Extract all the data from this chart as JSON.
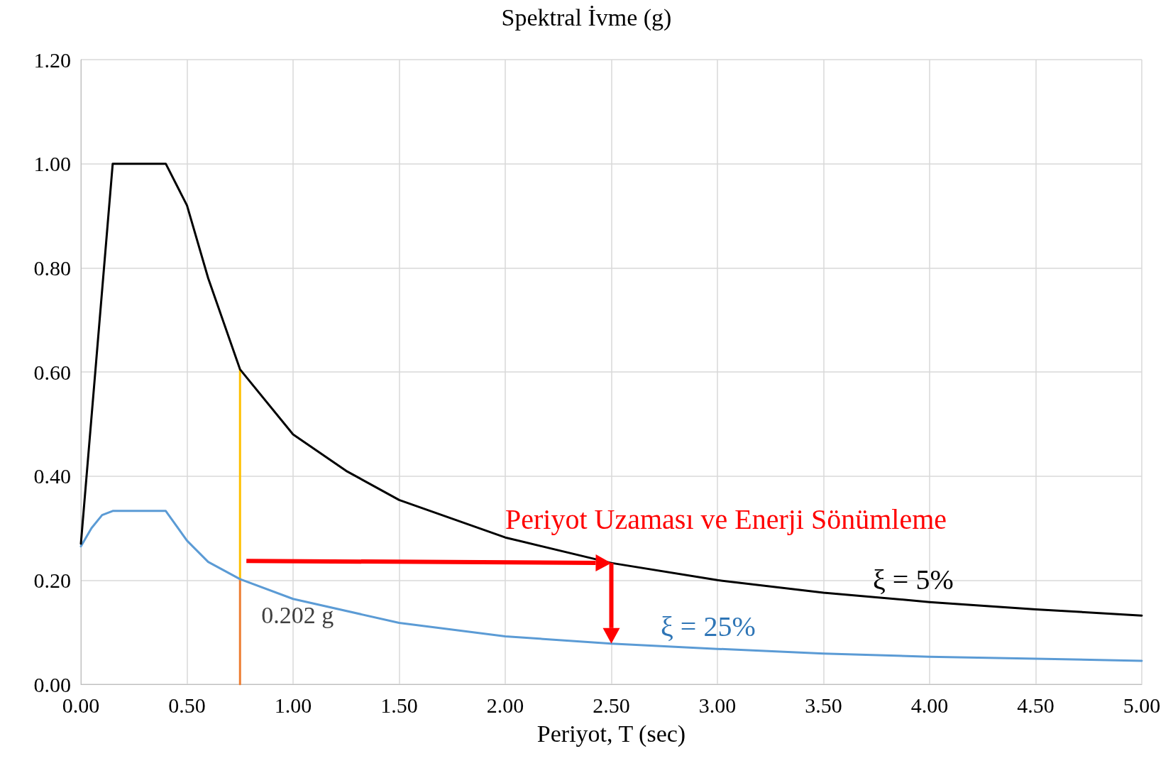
{
  "chart_data": {
    "type": "line",
    "title": "Spektral İvme (g)",
    "xlabel": "Periyot, T (sec)",
    "x": [
      0,
      0.15,
      0.4,
      0.5,
      0.6,
      0.75,
      1.0,
      1.25,
      1.5,
      2.0,
      2.5,
      3.0,
      3.5,
      4.0,
      4.5,
      5.0
    ],
    "series": [
      {
        "name": "ξ = 5%",
        "color": "#000000",
        "values": [
          0.27,
          1.0,
          1.0,
          0.92,
          0.78,
          0.605,
          0.48,
          0.41,
          0.354,
          0.282,
          0.233,
          0.2,
          0.176,
          0.158,
          0.144,
          0.132
        ]
      },
      {
        "name": "ξ = 25%",
        "color": "#5b9bd5",
        "x": [
          0,
          0.05,
          0.1,
          0.15,
          0.4,
          0.5,
          0.6,
          0.75,
          1.0,
          1.5,
          2.0,
          2.5,
          3.0,
          3.5,
          4.0,
          4.5,
          5.0
        ],
        "values": [
          0.265,
          0.3,
          0.325,
          0.333,
          0.333,
          0.276,
          0.235,
          0.202,
          0.164,
          0.118,
          0.092,
          0.078,
          0.068,
          0.059,
          0.053,
          0.049,
          0.045
        ]
      },
      {
        "color": "#ffc000",
        "x": [
          0.75,
          0.75
        ],
        "values": [
          0.202,
          0.605
        ]
      },
      {
        "color": "#ed7d31",
        "x": [
          0.75,
          0.75
        ],
        "values": [
          0,
          0.202
        ]
      }
    ],
    "annotations": [
      {
        "text": "0.202 g",
        "x": 0.75,
        "y": 0.202
      },
      "Periyot Uzaması ve Enerji Sönümleme"
    ],
    "xlim": [
      0,
      5
    ],
    "xticks": [
      {
        "value": 0,
        "label": "0.00"
      },
      {
        "value": 0.5,
        "label": "0.50"
      },
      {
        "value": 1,
        "label": "1.00"
      },
      {
        "value": 1.5,
        "label": "1.50"
      },
      {
        "value": 2,
        "label": "2.00"
      },
      {
        "value": 2.5,
        "label": "2.50"
      },
      {
        "value": 3,
        "label": "3.00"
      },
      {
        "value": 3.5,
        "label": "3.50"
      },
      {
        "value": 4,
        "label": "4.00"
      },
      {
        "value": 4.5,
        "label": "4.50"
      },
      {
        "value": 5,
        "label": "5.00"
      }
    ],
    "ylim": [
      0,
      1.2
    ],
    "yticks": [
      {
        "value": 0,
        "label": "0.00"
      },
      {
        "value": 0.2,
        "label": "0.20"
      },
      {
        "value": 0.4,
        "label": "0.40"
      },
      {
        "value": 0.6,
        "label": "0.60"
      },
      {
        "value": 0.8,
        "label": "0.80"
      },
      {
        "value": 1,
        "label": "1.00"
      },
      {
        "value": 1.2,
        "label": "1.20"
      }
    ],
    "grid": true,
    "legend": false,
    "marker": "none",
    "line_style": "solid"
  }
}
